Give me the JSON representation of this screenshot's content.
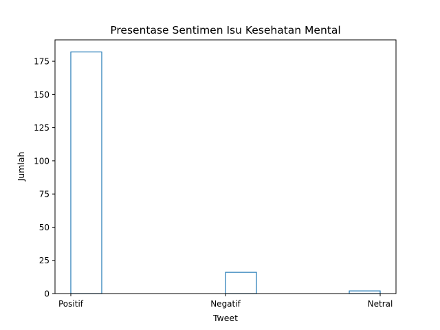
{
  "chart_data": {
    "type": "bar",
    "title": "Presentase Sentimen Isu Kesehatan Mental",
    "xlabel": "Tweet",
    "ylabel": "Jumlah",
    "categories": [
      "Positif",
      "Negatif",
      "Netral"
    ],
    "values": [
      182,
      16,
      2
    ],
    "y_ticks": [
      0,
      25,
      50,
      75,
      100,
      125,
      150,
      175
    ],
    "ylim": [
      0,
      191.1
    ],
    "grid": false,
    "legend": "none",
    "style": "histogram-outline",
    "colors": {
      "bar_edge": "#1f77b4",
      "bar_fill": "#ffffff",
      "axis": "#000000"
    }
  }
}
